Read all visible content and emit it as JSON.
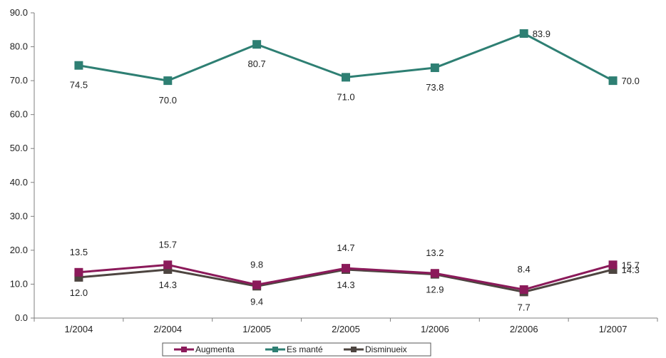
{
  "chart_data": {
    "type": "line",
    "categories": [
      "1/2004",
      "2/2004",
      "1/2005",
      "2/2005",
      "1/2006",
      "2/2006",
      "1/2007"
    ],
    "ylim": [
      0,
      90
    ],
    "yticks": [
      "0.0",
      "10.0",
      "20.0",
      "30.0",
      "40.0",
      "50.0",
      "60.0",
      "70.0",
      "80.0",
      "90.0"
    ],
    "grid": false,
    "legend_position": "bottom",
    "series": [
      {
        "name": "Augmenta",
        "color": "#8b1a5a",
        "values": [
          13.5,
          15.7,
          9.8,
          14.7,
          13.2,
          8.4,
          15.7
        ],
        "labels": [
          "13.5",
          "15.7",
          "9.8",
          "14.7",
          "13.2",
          "8.4",
          "15.7"
        ]
      },
      {
        "name": "Es manté",
        "color": "#2e7f73",
        "values": [
          74.5,
          70.0,
          80.7,
          71.0,
          73.8,
          83.9,
          70.0
        ],
        "labels": [
          "74.5",
          "70.0",
          "80.7",
          "71.0",
          "73.8",
          "83.9",
          "70.0"
        ]
      },
      {
        "name": "Disminueix",
        "color": "#4d4540",
        "values": [
          12.0,
          14.3,
          9.4,
          14.3,
          12.9,
          7.7,
          14.3
        ],
        "labels": [
          "12.0",
          "14.3",
          "9.4",
          "14.3",
          "12.9",
          "7.7",
          "14.3"
        ]
      }
    ]
  }
}
